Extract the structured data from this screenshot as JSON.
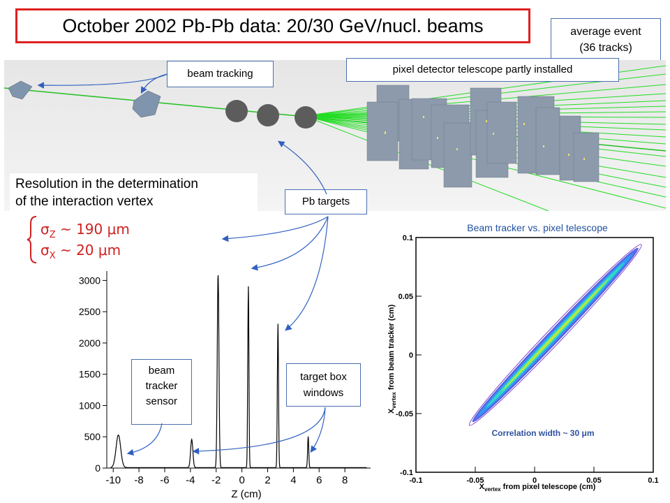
{
  "title": "October 2002 Pb-Pb data: 20/30 GeV/nucl. beams",
  "event_note": {
    "line1": "average event",
    "line2": "(36 tracks)"
  },
  "labels": {
    "beam_tracking": "beam tracking",
    "pixel_telescope": "pixel detector telescope partly installed",
    "pb_targets": "Pb targets",
    "beam_tracker_sensor": [
      "beam",
      "tracker",
      "sensor"
    ],
    "target_box_windows": [
      "target box",
      "windows"
    ]
  },
  "resolution": {
    "line1": "Resolution in the determination",
    "line2": "of the interaction vertex",
    "sigma_z_symbol": "σ",
    "sigma_z_sub": "Z",
    "sigma_z_value": "~ 190 μm",
    "sigma_x_symbol": "σ",
    "sigma_x_sub": "X",
    "sigma_x_value": "~  20 μm"
  },
  "colors": {
    "title_border": "#e02020",
    "sigma": "#d02020",
    "arrows": "#3060c0",
    "tracks": "#20d020",
    "plot2_title": "#2050a0"
  },
  "chart_data": [
    {
      "type": "line",
      "xlabel": "Z (cm)",
      "ylabel": "",
      "xlim": [
        -10.5,
        10
      ],
      "ylim": [
        0,
        3150
      ],
      "xticks": [
        -10,
        -8,
        -6,
        -4,
        -2,
        0,
        2,
        4,
        6,
        8
      ],
      "yticks": [
        0,
        500,
        1000,
        1500,
        2000,
        2500,
        3000
      ],
      "peaks": [
        {
          "z": -9.6,
          "height": 520,
          "width": 0.45
        },
        {
          "z": -3.9,
          "height": 450,
          "width": 0.22
        },
        {
          "z": -1.85,
          "height": 3100,
          "width": 0.16
        },
        {
          "z": 0.5,
          "height": 2900,
          "width": 0.11
        },
        {
          "z": 2.8,
          "height": 2300,
          "width": 0.11
        },
        {
          "z": 5.15,
          "height": 500,
          "width": 0.11
        }
      ],
      "grid": false
    },
    {
      "type": "heatmap",
      "title": "Beam tracker vs. pixel telescope",
      "xlabel": "X_vertex from pixel telescope (cm)",
      "ylabel": "X_vertex from beam tracker (cm)",
      "xlabel_parts": {
        "main": "X",
        "sub": "vertex",
        "rest": " from pixel telescope (cm)"
      },
      "ylabel_parts": {
        "main": "X",
        "sub": "vertex",
        "rest": " from beam tracker (cm)"
      },
      "xlim": [
        -0.1,
        0.1
      ],
      "ylim": [
        -0.1,
        0.1
      ],
      "xticks": [
        -0.1,
        -0.05,
        0,
        0.05,
        0.1
      ],
      "yticks": [
        -0.1,
        -0.05,
        0,
        0.05,
        0.1
      ],
      "tick_labels": [
        "-0.1",
        "-0.05",
        "0",
        "0.05",
        "0.1"
      ],
      "correlation": {
        "from": [
          -0.055,
          -0.06
        ],
        "to": [
          0.09,
          0.094
        ]
      },
      "annotation": "Correlation width ~ 30 μm",
      "grid": false
    }
  ]
}
